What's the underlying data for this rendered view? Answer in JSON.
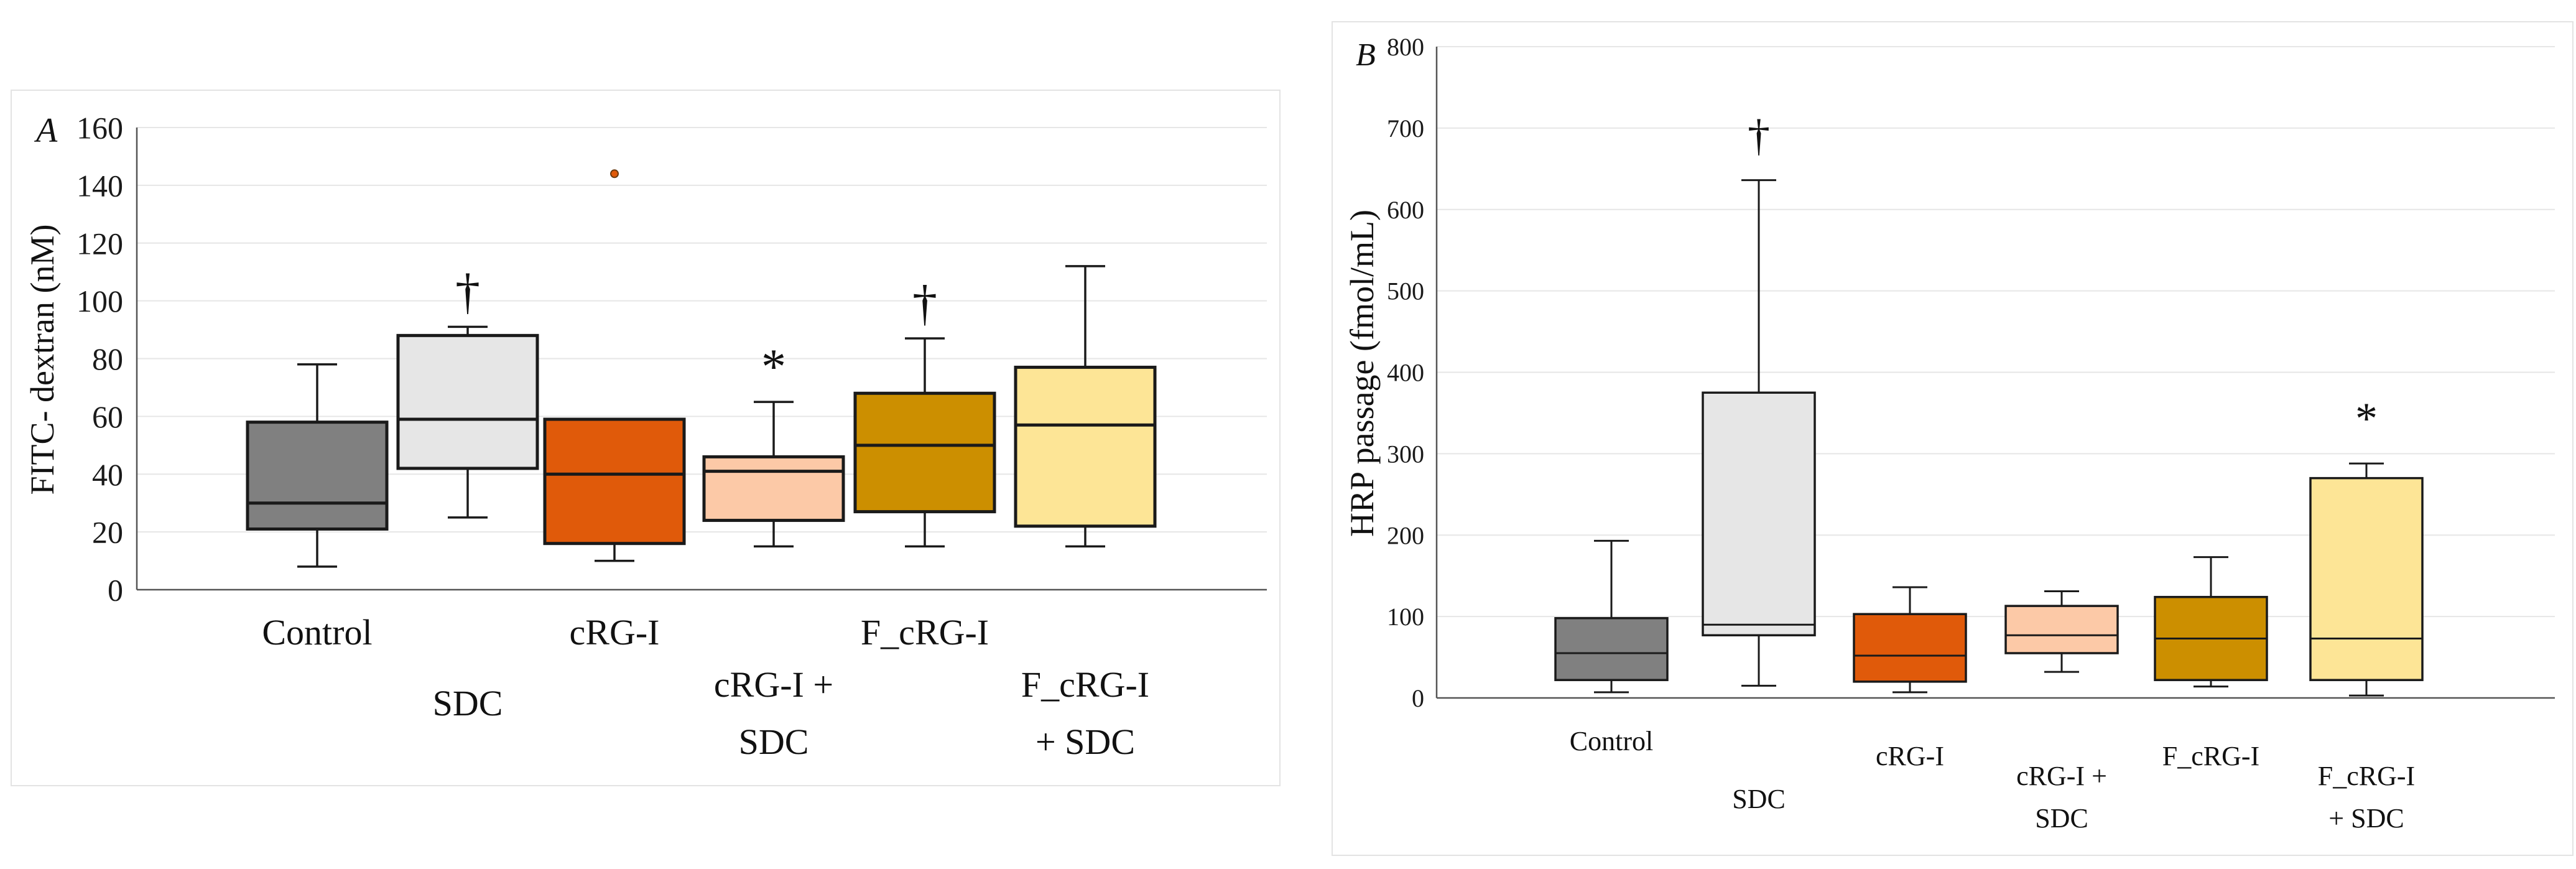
{
  "chart_data": [
    {
      "type": "boxplot",
      "panel_label": "A",
      "title": "",
      "xlabel": "",
      "ylabel": "FITC- dextran (nM)",
      "ylim": [
        0,
        160
      ],
      "yticks": [
        0,
        20,
        40,
        60,
        80,
        100,
        120,
        140,
        160
      ],
      "grid": true,
      "categories": [
        {
          "line1": "Control",
          "line2": ""
        },
        {
          "line1": "SDC",
          "line2": ""
        },
        {
          "line1": "cRG-I",
          "line2": ""
        },
        {
          "line1": "cRG-I +",
          "line2": "SDC"
        },
        {
          "line1": "F_cRG-I",
          "line2": ""
        },
        {
          "line1": "F_cRG-I",
          "line2": "+ SDC"
        }
      ],
      "series": [
        {
          "name": "Control",
          "color": "#808080",
          "min": 8,
          "q1": 21,
          "median": 30,
          "q3": 58,
          "max": 78,
          "outliers": [],
          "marker": ""
        },
        {
          "name": "SDC",
          "color": "#e6e6e6",
          "min": 25,
          "q1": 42,
          "median": 59,
          "q3": 88,
          "max": 91,
          "outliers": [],
          "marker": "†"
        },
        {
          "name": "cRG-I",
          "color": "#e05a0a",
          "min": 10,
          "q1": 16,
          "median": 40,
          "q3": 59,
          "max": 59,
          "outliers": [
            144
          ],
          "marker": ""
        },
        {
          "name": "cRG-I + SDC",
          "color": "#fcc9a7",
          "min": 15,
          "q1": 24,
          "median": 41,
          "q3": 46,
          "max": 65,
          "outliers": [],
          "marker": "*"
        },
        {
          "name": "F_cRG-I",
          "color": "#cc8f00",
          "min": 15,
          "q1": 27,
          "median": 50,
          "q3": 68,
          "max": 87,
          "outliers": [],
          "marker": "†"
        },
        {
          "name": "F_cRG-I + SDC",
          "color": "#fde596",
          "min": 15,
          "q1": 22,
          "median": 57,
          "q3": 77,
          "max": 112,
          "outliers": [],
          "marker": ""
        }
      ]
    },
    {
      "type": "boxplot",
      "panel_label": "B",
      "title": "",
      "xlabel": "",
      "ylabel": "HRP passage (fmol/mL)",
      "ylim": [
        0,
        800
      ],
      "yticks": [
        0,
        100,
        200,
        300,
        400,
        500,
        600,
        700,
        800
      ],
      "grid": true,
      "categories": [
        {
          "line1": "Control",
          "line2": ""
        },
        {
          "line1": "SDC",
          "line2": ""
        },
        {
          "line1": "cRG-I",
          "line2": ""
        },
        {
          "line1": "cRG-I +",
          "line2": "SDC"
        },
        {
          "line1": "F_cRG-I",
          "line2": ""
        },
        {
          "line1": "F_cRG-I",
          "line2": "+ SDC"
        }
      ],
      "series": [
        {
          "name": "Control",
          "color": "#808080",
          "min": 7,
          "q1": 22,
          "median": 55,
          "q3": 98,
          "max": 193,
          "outliers": [],
          "marker": ""
        },
        {
          "name": "SDC",
          "color": "#e6e6e6",
          "min": 15,
          "q1": 77,
          "median": 90,
          "q3": 375,
          "max": 636,
          "outliers": [],
          "marker": "†"
        },
        {
          "name": "cRG-I",
          "color": "#e05a0a",
          "min": 7,
          "q1": 20,
          "median": 52,
          "q3": 103,
          "max": 136,
          "outliers": [],
          "marker": ""
        },
        {
          "name": "cRG-I + SDC",
          "color": "#fcc9a7",
          "min": 32,
          "q1": 55,
          "median": 77,
          "q3": 113,
          "max": 131,
          "outliers": [],
          "marker": ""
        },
        {
          "name": "F_cRG-I",
          "color": "#cc8f00",
          "min": 14,
          "q1": 22,
          "median": 73,
          "q3": 124,
          "max": 173,
          "outliers": [],
          "marker": ""
        },
        {
          "name": "F_cRG-I + SDC",
          "color": "#fde596",
          "min": 3,
          "q1": 22,
          "median": 73,
          "q3": 270,
          "max": 288,
          "outliers": [],
          "marker": "*"
        }
      ]
    }
  ]
}
